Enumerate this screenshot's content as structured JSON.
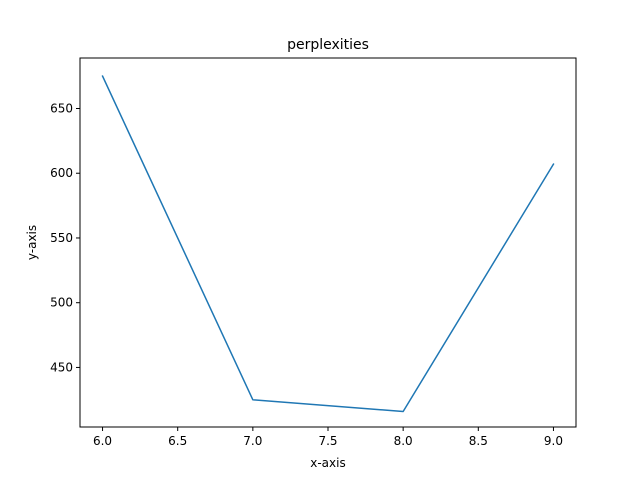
{
  "chart_data": {
    "type": "line",
    "title": "perplexities",
    "xlabel": "x-axis",
    "ylabel": "y-axis",
    "xlim": [
      5.85,
      9.15
    ],
    "ylim": [
      404,
      689
    ],
    "xticks": [
      6.0,
      6.5,
      7.0,
      7.5,
      8.0,
      8.5,
      9.0
    ],
    "xtick_labels": [
      "6.0",
      "6.5",
      "7.0",
      "7.5",
      "8.0",
      "8.5",
      "9.0"
    ],
    "yticks": [
      450,
      500,
      550,
      600,
      650
    ],
    "ytick_labels": [
      "450",
      "500",
      "550",
      "600",
      "650"
    ],
    "grid": false,
    "series": [
      {
        "color": "#1f77b4",
        "x": [
          6,
          7,
          8,
          9
        ],
        "y": [
          675,
          425,
          416,
          607
        ]
      }
    ]
  }
}
